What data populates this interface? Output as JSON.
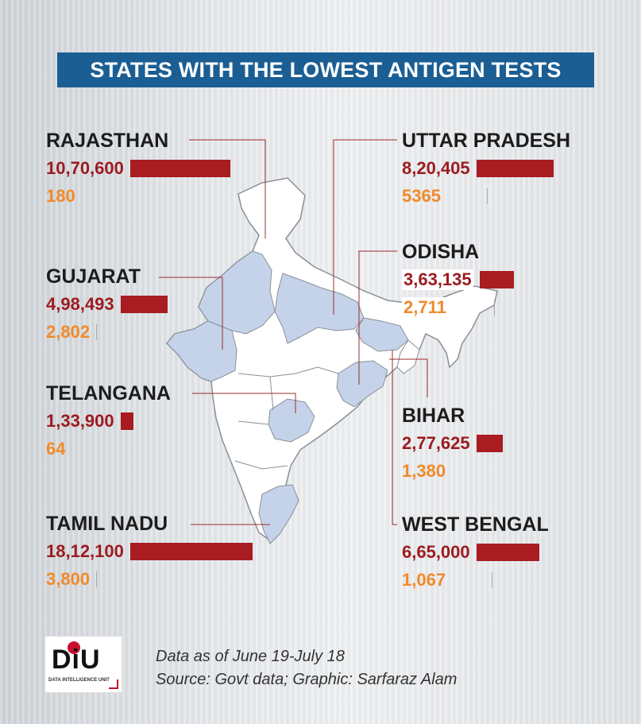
{
  "title": "STATES WITH THE LOWEST ANTIGEN TESTS",
  "colors": {
    "title_bg": "#1b5e93",
    "bar": "#a81c22",
    "total_text": "#9c1b1f",
    "antigen_text": "#f08a2a",
    "highlight_state": "#c5d3ea",
    "map_fill": "#ffffff"
  },
  "chart_data": {
    "type": "bar",
    "categories": [
      "RAJASTHAN",
      "GUJARAT",
      "TELANGANA",
      "TAMIL NADU",
      "UTTAR PRADESH",
      "ODISHA",
      "BIHAR",
      "WEST BENGAL"
    ],
    "series": [
      {
        "values": [
          1070600,
          498493,
          133900,
          1812100,
          820405,
          363135,
          277625,
          665000
        ]
      },
      {
        "values": [
          180,
          2802,
          64,
          3800,
          5365,
          2711,
          1380,
          1067
        ]
      }
    ],
    "states": [
      {
        "name": "RAJASTHAN",
        "total_label": "10,70,600",
        "total": 1070600,
        "antigen_label": "180",
        "antigen": 180
      },
      {
        "name": "GUJARAT",
        "total_label": "4,98,493",
        "total": 498493,
        "antigen_label": "2,802",
        "antigen": 2802
      },
      {
        "name": "TELANGANA",
        "total_label": "1,33,900",
        "total": 133900,
        "antigen_label": "64",
        "antigen": 64
      },
      {
        "name": "TAMIL NADU",
        "total_label": "18,12,100",
        "total": 1812100,
        "antigen_label": "3,800",
        "antigen": 3800
      },
      {
        "name": "UTTAR PRADESH",
        "total_label": "8,20,405",
        "total": 820405,
        "antigen_label": "5365",
        "antigen": 5365
      },
      {
        "name": "ODISHA",
        "total_label": "3,63,135",
        "total": 363135,
        "antigen_label": "2,711",
        "antigen": 2711
      },
      {
        "name": "BIHAR",
        "total_label": "2,77,625",
        "total": 277625,
        "antigen_label": "1,380",
        "antigen": 1380
      },
      {
        "name": "WEST BENGAL",
        "total_label": "6,65,000",
        "total": 665000,
        "antigen_label": "1,067",
        "antigen": 1067
      }
    ]
  },
  "footer": {
    "logo_text": "DiU",
    "logo_subtext": "DATA INTELLIGENCE UNIT",
    "line1": "Data as of June 19-July 18",
    "line2": "Source: Govt data; Graphic: Sarfaraz Alam"
  }
}
